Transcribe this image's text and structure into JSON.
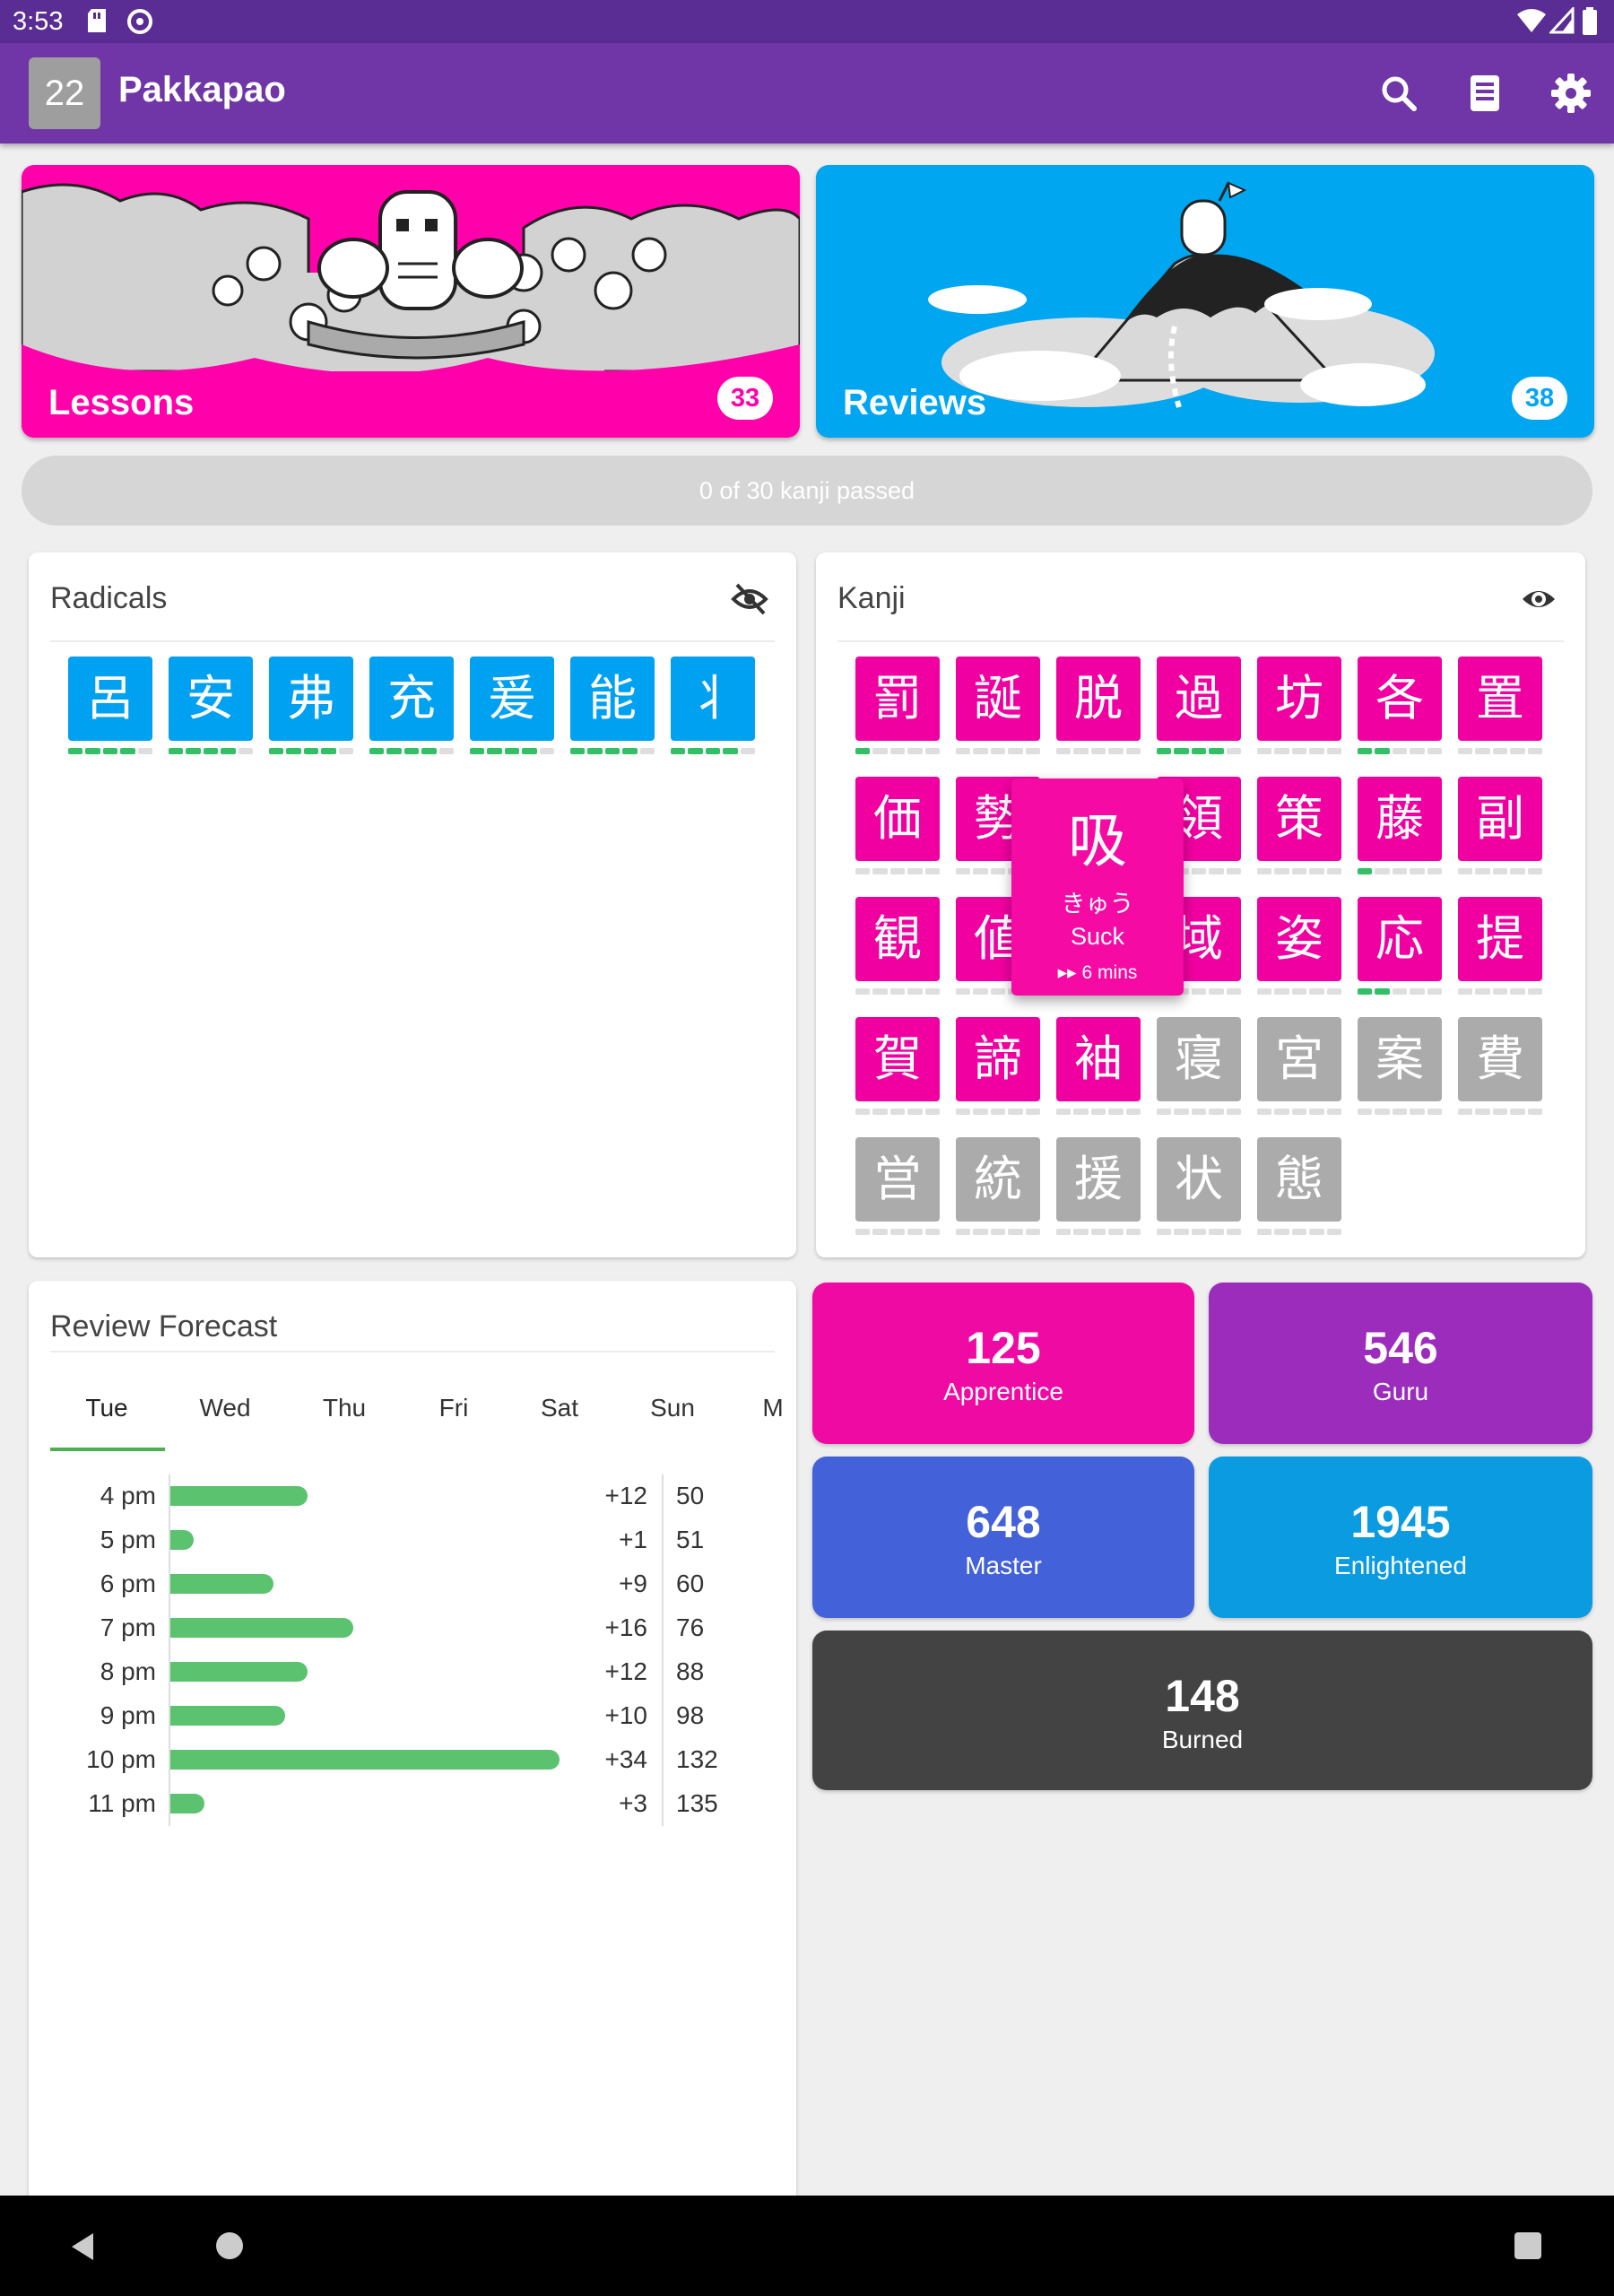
{
  "status_bar": {
    "time": "3:53"
  },
  "app_bar": {
    "level": "22",
    "title": "Pakkapao"
  },
  "lessons": {
    "label": "Lessons",
    "count": "33",
    "color": "#ff00aa"
  },
  "reviews": {
    "label": "Reviews",
    "count": "38",
    "color": "#00a6f0"
  },
  "progress": {
    "text": "0 of 30 kanji passed",
    "fraction": 0
  },
  "radicals": {
    "title": "Radicals",
    "items": [
      {
        "char": "呂",
        "level": 4
      },
      {
        "char": "安",
        "level": 4
      },
      {
        "char": "弗",
        "level": 4
      },
      {
        "char": "充",
        "level": 4
      },
      {
        "char": "爰",
        "level": 4
      },
      {
        "char": "能",
        "level": 4
      },
      {
        "char": "丬",
        "level": 4
      }
    ]
  },
  "kanji": {
    "title": "Kanji",
    "items": [
      {
        "char": "罰",
        "level": 1,
        "state": "active"
      },
      {
        "char": "誕",
        "level": 0,
        "state": "active"
      },
      {
        "char": "脱",
        "level": 0,
        "state": "active"
      },
      {
        "char": "過",
        "level": 4,
        "state": "active"
      },
      {
        "char": "坊",
        "level": 0,
        "state": "active"
      },
      {
        "char": "各",
        "level": 2,
        "state": "active"
      },
      {
        "char": "置",
        "level": 0,
        "state": "active"
      },
      {
        "char": "価",
        "level": 0,
        "state": "active"
      },
      {
        "char": "勢",
        "level": 0,
        "state": "active"
      },
      {
        "char": "",
        "level": 0,
        "state": "hidden"
      },
      {
        "char": "領",
        "level": 0,
        "state": "active"
      },
      {
        "char": "策",
        "level": 0,
        "state": "active"
      },
      {
        "char": "藤",
        "level": 1,
        "state": "active"
      },
      {
        "char": "副",
        "level": 0,
        "state": "active"
      },
      {
        "char": "観",
        "level": 0,
        "state": "active"
      },
      {
        "char": "値",
        "level": 0,
        "state": "active"
      },
      {
        "char": "",
        "level": 0,
        "state": "hidden"
      },
      {
        "char": "域",
        "level": 0,
        "state": "active"
      },
      {
        "char": "姿",
        "level": 0,
        "state": "active"
      },
      {
        "char": "応",
        "level": 2,
        "state": "active"
      },
      {
        "char": "提",
        "level": 0,
        "state": "active"
      },
      {
        "char": "賀",
        "level": 0,
        "state": "active"
      },
      {
        "char": "諦",
        "level": 0,
        "state": "active"
      },
      {
        "char": "袖",
        "level": 0,
        "state": "active"
      },
      {
        "char": "寝",
        "level": 0,
        "state": "locked"
      },
      {
        "char": "宮",
        "level": 0,
        "state": "locked"
      },
      {
        "char": "案",
        "level": 0,
        "state": "locked"
      },
      {
        "char": "費",
        "level": 0,
        "state": "locked"
      },
      {
        "char": "営",
        "level": 0,
        "state": "locked"
      },
      {
        "char": "統",
        "level": 0,
        "state": "locked"
      },
      {
        "char": "援",
        "level": 0,
        "state": "locked"
      },
      {
        "char": "状",
        "level": 0,
        "state": "locked"
      },
      {
        "char": "態",
        "level": 0,
        "state": "locked"
      }
    ],
    "tooltip": {
      "char": "吸",
      "reading": "きゅう",
      "meaning": "Suck",
      "time": "6 mins"
    }
  },
  "forecast": {
    "title": "Review Forecast",
    "tabs": [
      "Tue",
      "Wed",
      "Thu",
      "Fri",
      "Sat",
      "Sun",
      "M"
    ],
    "selected_tab": "Tue",
    "rows": [
      {
        "time": "4 pm",
        "delta": "+12",
        "count": 12,
        "total": "50"
      },
      {
        "time": "5 pm",
        "delta": "+1",
        "count": 1,
        "total": "51"
      },
      {
        "time": "6 pm",
        "delta": "+9",
        "count": 9,
        "total": "60"
      },
      {
        "time": "7 pm",
        "delta": "+16",
        "count": 16,
        "total": "76"
      },
      {
        "time": "8 pm",
        "delta": "+12",
        "count": 12,
        "total": "88"
      },
      {
        "time": "9 pm",
        "delta": "+10",
        "count": 10,
        "total": "98"
      },
      {
        "time": "10 pm",
        "delta": "+34",
        "count": 34,
        "total": "132"
      },
      {
        "time": "11 pm",
        "delta": "+3",
        "count": 3,
        "total": "135"
      }
    ]
  },
  "srs": {
    "apprentice": {
      "count": "125",
      "label": "Apprentice",
      "color": "#ee0aa3"
    },
    "guru": {
      "count": "546",
      "label": "Guru",
      "color": "#9c2dbc"
    },
    "master": {
      "count": "648",
      "label": "Master",
      "color": "#4361d8"
    },
    "enlightened": {
      "count": "1945",
      "label": "Enlightened",
      "color": "#0b9be0"
    },
    "burned": {
      "count": "148",
      "label": "Burned",
      "color": "#434343"
    }
  },
  "colors": {
    "radical": "#00a1f1",
    "kanji": "#f100a1",
    "locked": "#ababab",
    "progress": "#33bf66",
    "app_bar": "#7035a6"
  }
}
